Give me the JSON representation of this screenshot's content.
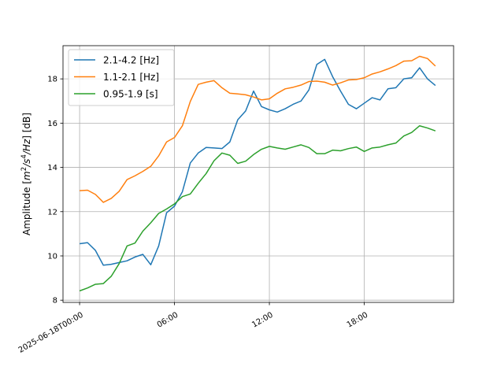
{
  "chart_data": {
    "type": "line",
    "title": "",
    "xlabel": "",
    "ylabel_parts": [
      "Amplitude [",
      "m",
      "2",
      "/",
      "s",
      "4",
      "/",
      "Hz",
      "] [dB]"
    ],
    "x_ticks": [
      {
        "value": 0,
        "label": "2025-06-18T00:00"
      },
      {
        "value": 6,
        "label": "06:00"
      },
      {
        "value": 12,
        "label": "12:00"
      },
      {
        "value": 18,
        "label": "18:00"
      }
    ],
    "xlim": [
      -1.05,
      23.65
    ],
    "ylim": [
      7.9,
      19.5
    ],
    "y_ticks": [
      8,
      10,
      12,
      14,
      16,
      18
    ],
    "grid": true,
    "legend_position": "top-left",
    "x": [
      0,
      0.5,
      1,
      1.5,
      2,
      2.5,
      3,
      3.5,
      4,
      4.5,
      5,
      5.5,
      6,
      6.5,
      7,
      7.5,
      8,
      8.5,
      9,
      9.5,
      10,
      10.5,
      11,
      11.5,
      12,
      12.5,
      13,
      13.5,
      14,
      14.5,
      15,
      15.5,
      16,
      16.5,
      17,
      17.5,
      18,
      18.5,
      19,
      19.5,
      20,
      20.5,
      21,
      21.5,
      22,
      22.5
    ],
    "series": [
      {
        "name": "2.1-4.2 [Hz]",
        "color": "#1f77b4",
        "values": [
          10.55,
          10.6,
          10.25,
          9.58,
          9.62,
          9.7,
          9.78,
          9.95,
          10.07,
          9.6,
          10.45,
          11.95,
          12.25,
          12.9,
          14.2,
          14.65,
          14.9,
          14.88,
          14.85,
          15.15,
          16.15,
          16.55,
          17.45,
          16.75,
          16.6,
          16.5,
          16.65,
          16.85,
          17.0,
          17.5,
          18.65,
          18.88,
          18.1,
          17.45,
          16.85,
          16.65,
          16.9,
          17.15,
          17.05,
          17.55,
          17.6,
          18.0,
          18.05,
          18.5,
          18.0,
          17.7
        ]
      },
      {
        "name": "1.1-2.1 [Hz]",
        "color": "#ff7f0e",
        "values": [
          12.95,
          12.97,
          12.78,
          12.42,
          12.6,
          12.92,
          13.45,
          13.62,
          13.82,
          14.05,
          14.52,
          15.15,
          15.35,
          15.88,
          16.98,
          17.75,
          17.85,
          17.92,
          17.6,
          17.35,
          17.32,
          17.28,
          17.18,
          17.05,
          17.1,
          17.35,
          17.55,
          17.62,
          17.72,
          17.88,
          17.9,
          17.85,
          17.72,
          17.82,
          17.95,
          17.97,
          18.05,
          18.22,
          18.32,
          18.45,
          18.6,
          18.8,
          18.82,
          19.02,
          18.92,
          18.58
        ]
      },
      {
        "name": "0.95-1.9 [s]",
        "color": "#2ca02c",
        "values": [
          8.42,
          8.55,
          8.72,
          8.75,
          9.08,
          9.65,
          10.45,
          10.58,
          11.12,
          11.5,
          11.92,
          12.12,
          12.35,
          12.68,
          12.8,
          13.28,
          13.72,
          14.3,
          14.65,
          14.55,
          14.18,
          14.28,
          14.58,
          14.82,
          14.95,
          14.88,
          14.82,
          14.92,
          15.02,
          14.9,
          14.62,
          14.62,
          14.78,
          14.75,
          14.85,
          14.92,
          14.72,
          14.88,
          14.92,
          15.02,
          15.1,
          15.42,
          15.58,
          15.88,
          15.78,
          15.65
        ]
      }
    ]
  }
}
